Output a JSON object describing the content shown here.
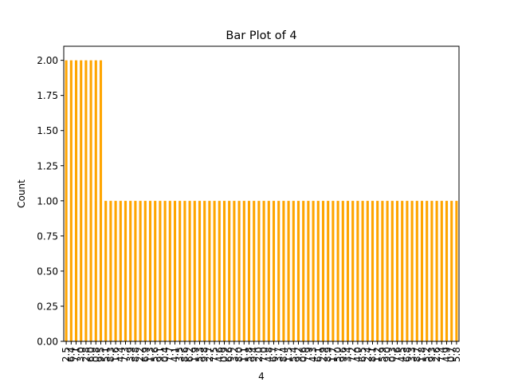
{
  "chart_data": {
    "type": "bar",
    "title": "Bar Plot of 4",
    "xlabel": "4",
    "ylabel": "Count",
    "ylim": [
      0,
      2.1
    ],
    "yticks": [
      "0.00",
      "0.25",
      "0.50",
      "0.75",
      "1.00",
      "1.25",
      "1.50",
      "1.75",
      "2.00"
    ],
    "bar_color": "#ffa500",
    "grid": false,
    "legend": "none",
    "categories": [
      "2.5",
      "6.4",
      "7.1",
      "3.0",
      "2.8",
      "6.0",
      "0.8",
      "9.5",
      "5.1",
      "8.3",
      "1.6",
      "4.4",
      "7.3",
      "3.9",
      "8.8",
      "2.2",
      "6.9",
      "1.3",
      "5.6",
      "9.1",
      "0.4",
      "7.7",
      "4.1",
      "3.5",
      "8.6",
      "6.2",
      "1.9",
      "5.3",
      "9.8",
      "2.7",
      "7.5",
      "4.6",
      "0.9",
      "6.6",
      "3.2",
      "8.0",
      "1.1",
      "5.8",
      "9.4",
      "2.0",
      "7.0",
      "4.8",
      "6.7",
      "3.7",
      "8.4",
      "1.5",
      "5.4",
      "9.2",
      "0.6",
      "7.9",
      "4.3",
      "6.1",
      "2.9",
      "8.9",
      "1.7",
      "5.0",
      "9.6",
      "3.4",
      "7.2",
      "4.0",
      "6.5",
      "2.4",
      "8.1",
      "1.2",
      "5.9",
      "9.0",
      "0.3",
      "7.6",
      "4.5",
      "6.8",
      "3.3",
      "8.7",
      "1.8",
      "5.2",
      "9.3",
      "2.6",
      "7.4",
      "4.9",
      "0.7",
      "5.8"
    ],
    "values": [
      2,
      2,
      2,
      2,
      2,
      2,
      2,
      2,
      1,
      1,
      1,
      1,
      1,
      1,
      1,
      1,
      1,
      1,
      1,
      1,
      1,
      1,
      1,
      1,
      1,
      1,
      1,
      1,
      1,
      1,
      1,
      1,
      1,
      1,
      1,
      1,
      1,
      1,
      1,
      1,
      1,
      1,
      1,
      1,
      1,
      1,
      1,
      1,
      1,
      1,
      1,
      1,
      1,
      1,
      1,
      1,
      1,
      1,
      1,
      1,
      1,
      1,
      1,
      1,
      1,
      1,
      1,
      1,
      1,
      1,
      1,
      1,
      1,
      1,
      1,
      1,
      1,
      1,
      1,
      1
    ]
  }
}
